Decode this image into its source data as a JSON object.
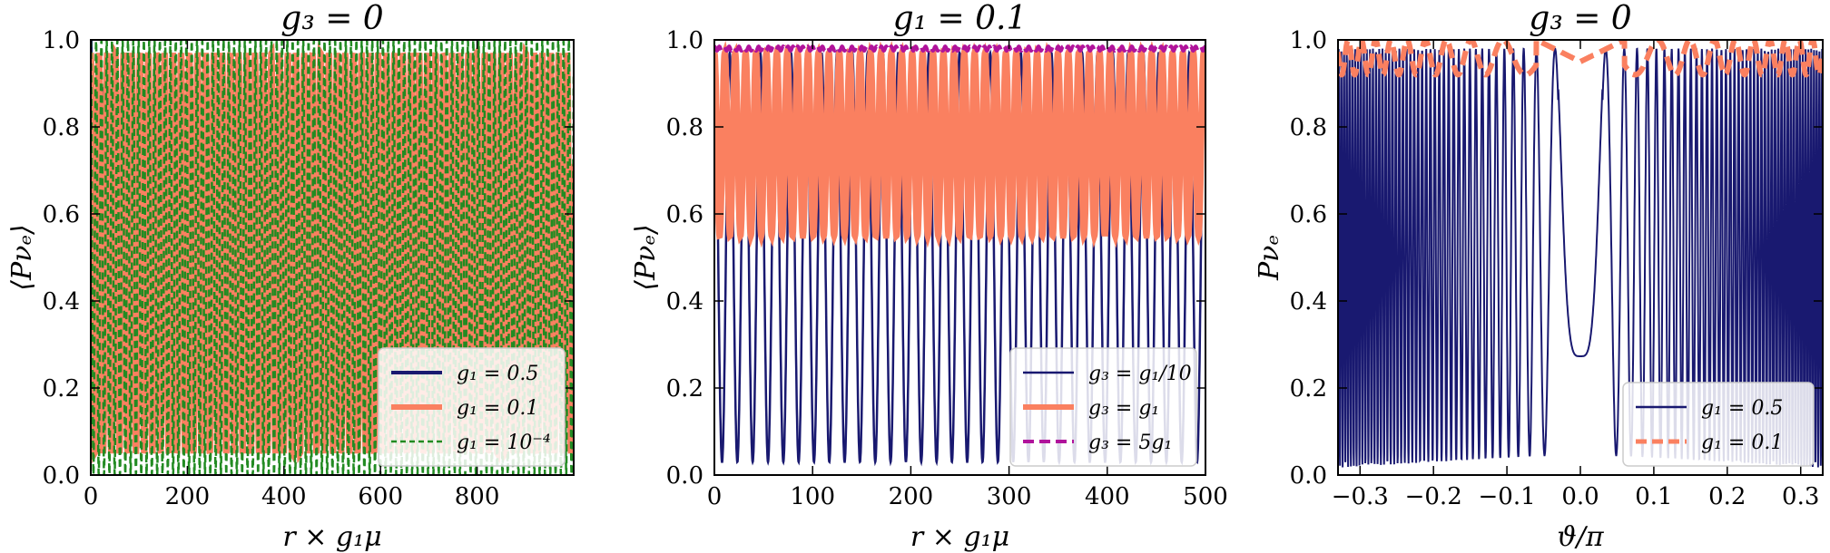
{
  "chart_data": [
    {
      "type": "line",
      "title": "g₃ = 0",
      "xlabel": "r × g₁μ",
      "ylabel": "⟨Pνₑ⟩",
      "xlim": [
        0,
        1000
      ],
      "ylim": [
        0,
        1
      ],
      "xticks": [
        0,
        200,
        400,
        600,
        800
      ],
      "yticks": [
        0.0,
        0.2,
        0.4,
        0.6,
        0.8,
        1.0
      ],
      "legend_position": "lower-right",
      "series": [
        {
          "name": "g₁ = 0.5",
          "color": "#191970",
          "style": "solid",
          "kind": "damped-oscillation",
          "mean": 0.5,
          "amplitude_start": 0.5,
          "amplitude_end": 0.025,
          "period": 25
        },
        {
          "name": "g₁ = 0.1",
          "color": "#fa8060",
          "style": "solid",
          "kind": "oscillation",
          "min": 0.05,
          "max": 0.97,
          "period": 17
        },
        {
          "name": "g₁ = 10⁻⁴",
          "color": "#228b22",
          "style": "dashed",
          "kind": "oscillation",
          "min": 0.0,
          "max": 1.0,
          "period": 11
        }
      ]
    },
    {
      "type": "line",
      "title": "g₁ = 0.1",
      "xlabel": "r × g₁μ",
      "ylabel": "⟨Pνₑ⟩",
      "xlim": [
        0,
        500
      ],
      "ylim": [
        0,
        1
      ],
      "xticks": [
        0,
        100,
        200,
        300,
        400,
        500
      ],
      "yticks": [
        0.0,
        0.2,
        0.4,
        0.6,
        0.8,
        1.0
      ],
      "legend_position": "lower-right",
      "series": [
        {
          "name": "g₃ = g₁/10",
          "color": "#191970",
          "style": "solid",
          "kind": "oscillation",
          "min": 0.03,
          "max": 0.97,
          "period": 15.6
        },
        {
          "name": "g₃ = g₁",
          "color": "#fa8060",
          "style": "solid",
          "kind": "oscillation",
          "min": 0.55,
          "max": 0.97,
          "period": 10.6
        },
        {
          "name": "g₃ = 5g₁",
          "color": "#b0139b",
          "style": "dashed",
          "kind": "oscillation",
          "min": 0.975,
          "max": 0.985,
          "period": 5
        }
      ]
    },
    {
      "type": "line",
      "title": "g₃ = 0",
      "xlabel": "ϑ/π",
      "ylabel": "Pνₑ",
      "xlim": [
        -0.33,
        0.33
      ],
      "ylim": [
        0,
        1
      ],
      "xticks": [
        -0.3,
        -0.2,
        -0.1,
        0.0,
        0.1,
        0.2,
        0.3
      ],
      "yticks": [
        0.0,
        0.2,
        0.4,
        0.6,
        0.8,
        1.0
      ],
      "legend_position": "lower-right",
      "series": [
        {
          "name": "g₁ = 0.5",
          "color": "#191970",
          "style": "solid",
          "kind": "chirp",
          "min_at_zero": 0.28,
          "peak": 0.98
        },
        {
          "name": "g₁ = 0.1",
          "color": "#fa8060",
          "style": "dashed",
          "kind": "chirp",
          "min": 0.92,
          "max": 1.0
        }
      ]
    }
  ]
}
